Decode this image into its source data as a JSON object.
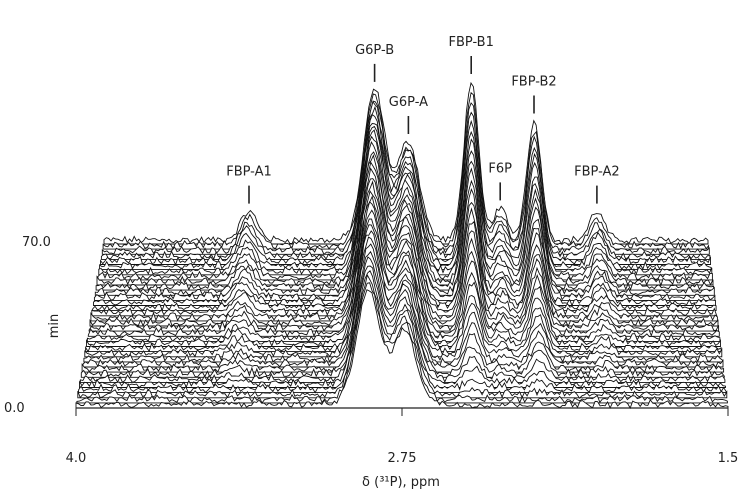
{
  "chart_data": {
    "type": "area",
    "title": "",
    "xlabel": "δ (³¹P), ppm",
    "ylabel": "min",
    "x_axis": {
      "min_label": "4.0",
      "mid_label": "2.75",
      "max_label": "1.5",
      "range": [
        4.0,
        1.5
      ],
      "reversed": true
    },
    "y_axis": {
      "start_label": "0.0",
      "end_label": "70.0",
      "range": [
        0.0,
        70.0
      ]
    },
    "grid": false,
    "legend": "none",
    "stack_count": 33,
    "line_color": "#111111",
    "peaks": [
      {
        "name": "FBP-A1",
        "ppm": 3.4,
        "height_final": 0.18
      },
      {
        "name": "G6P-B",
        "ppm": 2.88,
        "height_final": 0.95
      },
      {
        "name": "G6P-A",
        "ppm": 2.74,
        "height_final": 0.62
      },
      {
        "name": "FBP-B1",
        "ppm": 2.48,
        "height_final": 1.0
      },
      {
        "name": "F6P",
        "ppm": 2.36,
        "height_final": 0.2
      },
      {
        "name": "FBP-B2",
        "ppm": 2.22,
        "height_final": 0.75
      },
      {
        "name": "FBP-A2",
        "ppm": 1.96,
        "height_final": 0.18
      }
    ]
  }
}
